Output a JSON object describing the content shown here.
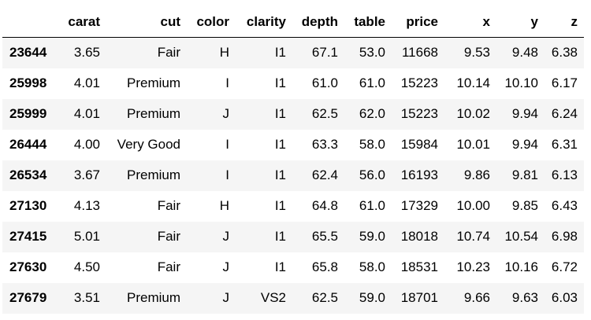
{
  "table": {
    "columns": [
      "",
      "carat",
      "cut",
      "color",
      "clarity",
      "depth",
      "table",
      "price",
      "x",
      "y",
      "z"
    ],
    "rows": [
      {
        "index": "23644",
        "cells": [
          "3.65",
          "Fair",
          "H",
          "I1",
          "67.1",
          "53.0",
          "11668",
          "9.53",
          "9.48",
          "6.38"
        ]
      },
      {
        "index": "25998",
        "cells": [
          "4.01",
          "Premium",
          "I",
          "I1",
          "61.0",
          "61.0",
          "15223",
          "10.14",
          "10.10",
          "6.17"
        ]
      },
      {
        "index": "25999",
        "cells": [
          "4.01",
          "Premium",
          "J",
          "I1",
          "62.5",
          "62.0",
          "15223",
          "10.02",
          "9.94",
          "6.24"
        ]
      },
      {
        "index": "26444",
        "cells": [
          "4.00",
          "Very Good",
          "I",
          "I1",
          "63.3",
          "58.0",
          "15984",
          "10.01",
          "9.94",
          "6.31"
        ]
      },
      {
        "index": "26534",
        "cells": [
          "3.67",
          "Premium",
          "I",
          "I1",
          "62.4",
          "56.0",
          "16193",
          "9.86",
          "9.81",
          "6.13"
        ]
      },
      {
        "index": "27130",
        "cells": [
          "4.13",
          "Fair",
          "H",
          "I1",
          "64.8",
          "61.0",
          "17329",
          "10.00",
          "9.85",
          "6.43"
        ]
      },
      {
        "index": "27415",
        "cells": [
          "5.01",
          "Fair",
          "J",
          "I1",
          "65.5",
          "59.0",
          "18018",
          "10.74",
          "10.54",
          "6.98"
        ]
      },
      {
        "index": "27630",
        "cells": [
          "4.50",
          "Fair",
          "J",
          "I1",
          "65.8",
          "58.0",
          "18531",
          "10.23",
          "10.16",
          "6.72"
        ]
      },
      {
        "index": "27679",
        "cells": [
          "3.51",
          "Premium",
          "J",
          "VS2",
          "62.5",
          "59.0",
          "18701",
          "9.66",
          "9.63",
          "6.03"
        ]
      }
    ]
  }
}
